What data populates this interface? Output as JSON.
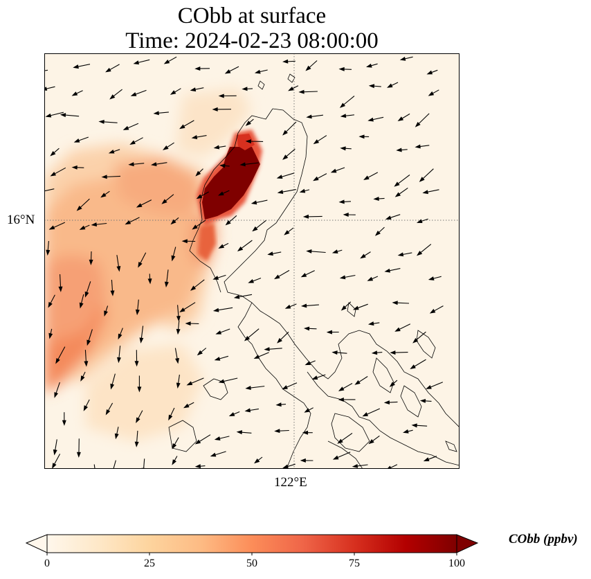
{
  "title": {
    "line1": "CObb at surface",
    "line2": "Time: 2024-02-23 08:00:00"
  },
  "map": {
    "lat_label": "16°N",
    "lon_label": "122°E",
    "gridlines": "dotted",
    "coastline": "black"
  },
  "colorbar": {
    "label": "CObb (ppbv)",
    "ticks": [
      "0",
      "25",
      "50",
      "75",
      "100"
    ],
    "range": [
      0,
      100
    ],
    "extend": "both",
    "colormap": "OrRd"
  },
  "colors": {
    "background": "#fdf4e6",
    "low": "#fde0b8",
    "mid": "#f7a16a",
    "high": "#e8563e",
    "max": "#7f0000"
  }
}
